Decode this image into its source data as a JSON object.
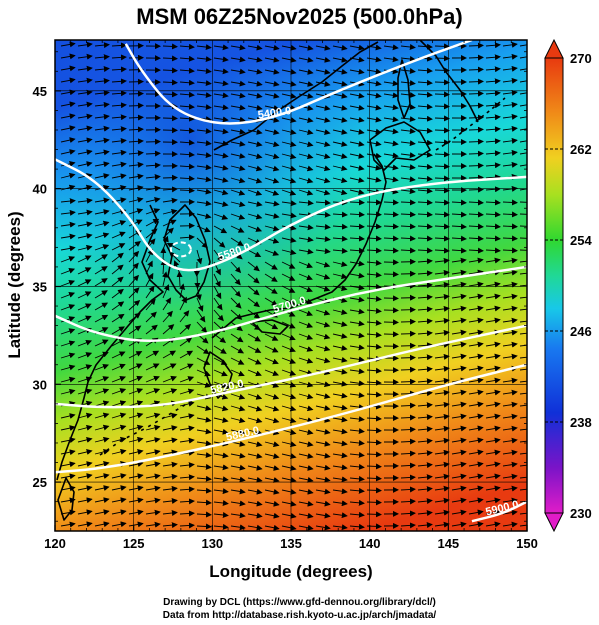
{
  "title": "MSM 06Z25Nov2025 (500.0hPa)",
  "x_axis": {
    "label": "Longitude (degrees)",
    "range": [
      120,
      150
    ],
    "ticks": [
      120,
      125,
      130,
      135,
      140,
      145,
      150
    ]
  },
  "y_axis": {
    "label": "Latitude  (degrees)",
    "range": [
      22.5,
      47.6
    ],
    "ticks": [
      25,
      30,
      35,
      40,
      45
    ]
  },
  "colorbar": {
    "range": [
      230,
      270
    ],
    "tick_labels": [
      "270",
      "262",
      "254",
      "246",
      "238",
      "230"
    ],
    "colors": [
      "#e01cc8",
      "#7a14c8",
      "#1030d8",
      "#1878f0",
      "#18c8e8",
      "#20d898",
      "#30d830",
      "#a8e020",
      "#f0d020",
      "#f08a18",
      "#e83a10"
    ]
  },
  "contours": [
    {
      "label": "5400.0",
      "lat": [
        47.4,
        46.0,
        44.0,
        43.2,
        43.6,
        45.0,
        46.6,
        47.6
      ],
      "lon": [
        124.5,
        125.5,
        127.5,
        130.5,
        134.0,
        138.0,
        143.0,
        146.5
      ]
    },
    {
      "label": "5580.0",
      "lat": [
        41.5,
        40.5,
        38.5,
        36.6,
        35.6,
        36.5,
        38.2,
        39.6,
        40.3,
        40.6
      ],
      "lon": [
        120.0,
        122.5,
        124.8,
        126.2,
        128.3,
        131.5,
        135.0,
        139.0,
        144.0,
        150.0
      ]
    },
    {
      "label": "5700.0",
      "lat": [
        33.5,
        32.6,
        32.1,
        32.6,
        33.8,
        34.8,
        35.4,
        36.0
      ],
      "lon": [
        120.0,
        122.5,
        126.0,
        130.0,
        135.0,
        140.0,
        145.0,
        150.0
      ]
    },
    {
      "label": "5820.0",
      "lat": [
        29.0,
        28.8,
        28.9,
        29.6,
        30.6,
        31.8,
        33.0
      ],
      "lon": [
        120.0,
        123.0,
        127.0,
        131.0,
        137.0,
        143.0,
        150.0
      ]
    },
    {
      "label": "5880.0",
      "lat": [
        25.5,
        25.7,
        26.3,
        27.2,
        28.4,
        30.0,
        31.0
      ],
      "lon": [
        120.0,
        123.0,
        127.0,
        132.0,
        138.0,
        145.0,
        150.0
      ]
    },
    {
      "label": "5900.0",
      "lat": [
        23.0,
        23.4,
        24.0
      ],
      "lon": [
        146.5,
        148.5,
        150.0
      ]
    }
  ],
  "credits": {
    "line1": "Drawing by DCL (https://www.gfd-dennou.org/library/dcl/)",
    "line2": "Data from http://database.rish.kyoto-u.ac.jp/arch/jmadata/"
  }
}
